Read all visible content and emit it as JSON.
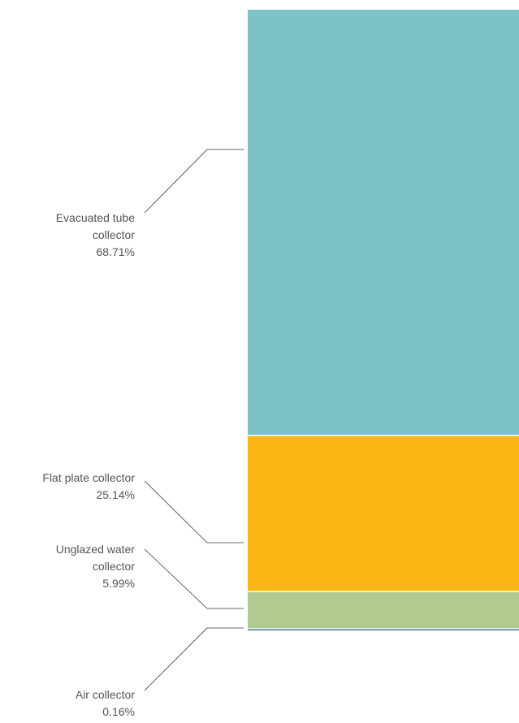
{
  "chart_data": {
    "type": "stacked-column",
    "categories": [
      "Evacuated tube collector",
      "Flat plate collector",
      "Unglazed water collector",
      "Air collector"
    ],
    "values": [
      68.71,
      25.14,
      5.99,
      0.16
    ],
    "value_labels": [
      "68.71%",
      "25.14%",
      "5.99%",
      "0.16%"
    ],
    "colors": [
      "#7dc2c7",
      "#fbb716",
      "#b1ca90",
      "#1f5a8a"
    ]
  }
}
